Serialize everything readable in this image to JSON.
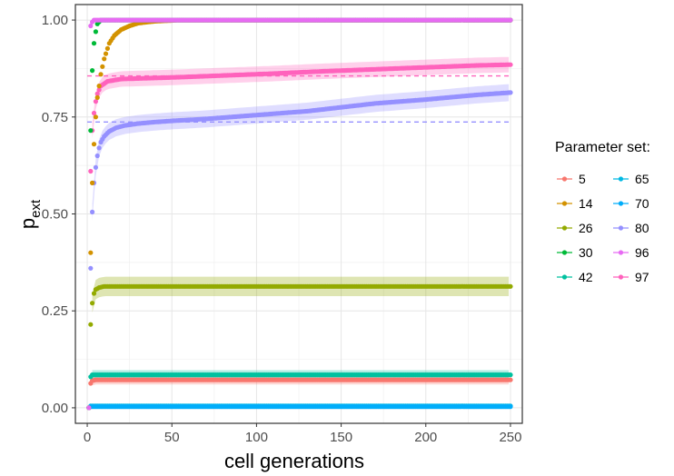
{
  "chart_data": {
    "type": "scatter",
    "xlabel": "cell generations",
    "ylabel_main": "p",
    "ylabel_sub": "ext",
    "xlim": [
      -7,
      257
    ],
    "ylim": [
      -0.04,
      1.04
    ],
    "x_ticks": [
      0,
      50,
      100,
      150,
      200,
      250
    ],
    "x_tick_labels": [
      "0",
      "50",
      "100",
      "150",
      "200",
      "250"
    ],
    "y_ticks": [
      0,
      0.25,
      0.5,
      0.75,
      1.0
    ],
    "y_tick_labels": [
      "0.00",
      "0.25",
      "0.50",
      "0.75",
      "1.00"
    ],
    "grid": true,
    "legend_title": "Parameter set:",
    "legend_position": "right",
    "series": [
      {
        "name": "5",
        "color": "#F8766D",
        "final": 0.072,
        "limit": 0.072,
        "band": 0.012,
        "early": [
          [
            1,
            0.0
          ],
          [
            2,
            0.063
          ],
          [
            3,
            0.07
          ],
          [
            5,
            0.072
          ]
        ]
      },
      {
        "name": "14",
        "color": "#D39200",
        "final": 1.0,
        "limit": 1.0,
        "band": 0.0,
        "early": [
          [
            1,
            0.0
          ],
          [
            2,
            0.4
          ],
          [
            3,
            0.58
          ],
          [
            4,
            0.68
          ],
          [
            5,
            0.75
          ],
          [
            6,
            0.8
          ],
          [
            8,
            0.86
          ],
          [
            10,
            0.9
          ],
          [
            13,
            0.94
          ],
          [
            16,
            0.96
          ],
          [
            20,
            0.975
          ],
          [
            25,
            0.985
          ],
          [
            30,
            0.992
          ],
          [
            40,
            0.997
          ],
          [
            55,
            1.0
          ]
        ]
      },
      {
        "name": "26",
        "color": "#93AA00",
        "final": 0.313,
        "limit": 0.31,
        "band": 0.025,
        "early": [
          [
            1,
            0.0
          ],
          [
            2,
            0.215
          ],
          [
            3,
            0.27
          ],
          [
            4,
            0.295
          ],
          [
            5,
            0.305
          ],
          [
            7,
            0.31
          ],
          [
            10,
            0.313
          ]
        ]
      },
      {
        "name": "30",
        "color": "#00BA38",
        "final": 1.0,
        "limit": 1.0,
        "band": 0.0,
        "early": [
          [
            1,
            0.0
          ],
          [
            2,
            0.715
          ],
          [
            3,
            0.87
          ],
          [
            4,
            0.94
          ],
          [
            5,
            0.97
          ],
          [
            6,
            0.99
          ],
          [
            8,
            1.0
          ]
        ]
      },
      {
        "name": "42",
        "color": "#00C19F",
        "final": 0.085,
        "limit": 0.085,
        "band": 0.012,
        "early": [
          [
            1,
            0.0
          ],
          [
            2,
            0.08
          ],
          [
            3,
            0.085
          ]
        ]
      },
      {
        "name": "65",
        "color": "#00B9E3",
        "final": 0.005,
        "limit": 0.005,
        "band": 0.004,
        "early": [
          [
            1,
            0.0
          ],
          [
            2,
            0.005
          ]
        ]
      },
      {
        "name": "70",
        "color": "#00ADFA",
        "final": 0.003,
        "limit": 0.003,
        "band": 0.003,
        "early": [
          [
            1,
            0.0
          ],
          [
            2,
            0.003
          ]
        ]
      },
      {
        "name": "80",
        "color": "#9590FF",
        "final": 0.813,
        "limit": 0.737,
        "band": 0.022,
        "early": [
          [
            1,
            0.0
          ],
          [
            2,
            0.36
          ],
          [
            3,
            0.505
          ],
          [
            4,
            0.58
          ],
          [
            5,
            0.62
          ],
          [
            6,
            0.65
          ],
          [
            7,
            0.67
          ],
          [
            8,
            0.685
          ],
          [
            10,
            0.7
          ],
          [
            13,
            0.713
          ],
          [
            17,
            0.722
          ],
          [
            22,
            0.728
          ],
          [
            30,
            0.733
          ],
          [
            40,
            0.737
          ],
          [
            50,
            0.74
          ],
          [
            70,
            0.745
          ],
          [
            100,
            0.755
          ],
          [
            130,
            0.765
          ],
          [
            150,
            0.775
          ],
          [
            170,
            0.785
          ],
          [
            200,
            0.795
          ],
          [
            230,
            0.807
          ],
          [
            250,
            0.813
          ]
        ]
      },
      {
        "name": "96",
        "color": "#E76BF3",
        "final": 1.0,
        "limit": 1.0,
        "band": 0.0,
        "early": [
          [
            1,
            0.0
          ],
          [
            2,
            0.985
          ],
          [
            3,
            0.995
          ],
          [
            4,
            1.0
          ]
        ]
      },
      {
        "name": "97",
        "color": "#FF62BC",
        "final": 0.885,
        "limit": 0.856,
        "band": 0.02,
        "early": [
          [
            1,
            0.0
          ],
          [
            2,
            0.61
          ],
          [
            3,
            0.715
          ],
          [
            4,
            0.76
          ],
          [
            5,
            0.79
          ],
          [
            6,
            0.81
          ],
          [
            8,
            0.83
          ],
          [
            12,
            0.842
          ],
          [
            20,
            0.848
          ],
          [
            50,
            0.852
          ],
          [
            80,
            0.857
          ],
          [
            110,
            0.862
          ],
          [
            140,
            0.868
          ],
          [
            170,
            0.873
          ],
          [
            200,
            0.878
          ],
          [
            230,
            0.883
          ],
          [
            250,
            0.885
          ]
        ]
      }
    ]
  }
}
